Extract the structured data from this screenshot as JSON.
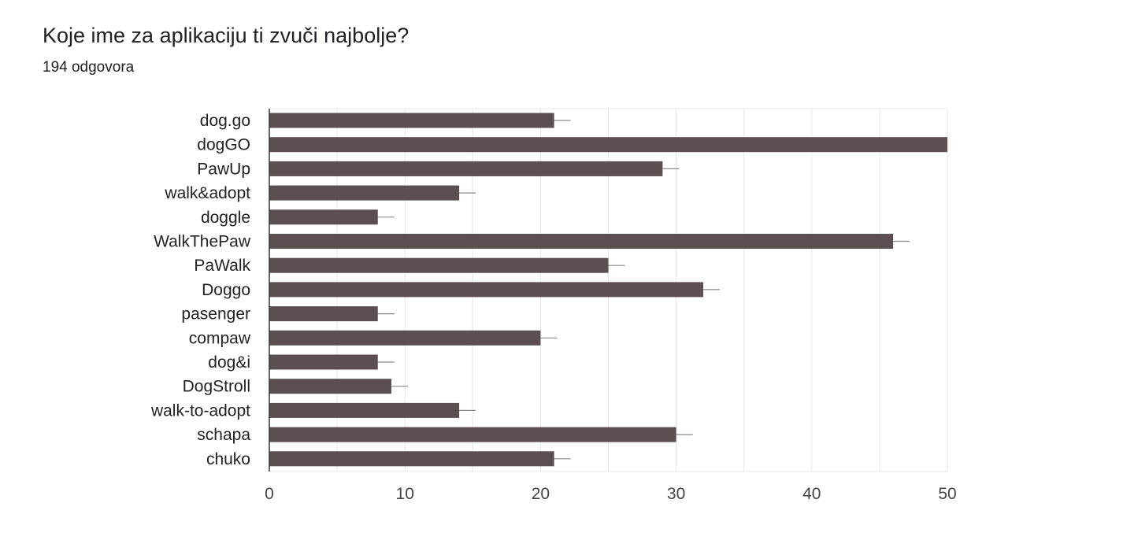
{
  "header": {
    "title": "Koje ime za aplikaciju ti zvuči najbolje?",
    "responses": "194 odgovora"
  },
  "colors": {
    "bar": "#5b4f4f",
    "grid": "#e6e6e6",
    "axis": "#333333",
    "error_bar": "#8a8a8a"
  },
  "chart_data": {
    "type": "bar",
    "orientation": "horizontal",
    "title": "Koje ime za aplikaciju ti zvuči najbolje?",
    "subtitle": "194 odgovora",
    "categories": [
      "dog.go",
      "dogGO",
      "PawUp",
      "walk&adopt",
      "doggle",
      "WalkThePaw",
      "PaWalk",
      "Doggo",
      "pasenger",
      "compaw",
      "dog&i",
      "DogStroll",
      "walk-to-adopt",
      "schapa",
      "chuko"
    ],
    "values": [
      21,
      50,
      29,
      14,
      8,
      46,
      25,
      32,
      8,
      20,
      8,
      9,
      14,
      30,
      21
    ],
    "xlim": [
      0,
      50
    ],
    "xticks": [
      0,
      10,
      20,
      30,
      40,
      50
    ],
    "grid": true,
    "legend": "none",
    "xlabel": "",
    "ylabel": ""
  }
}
